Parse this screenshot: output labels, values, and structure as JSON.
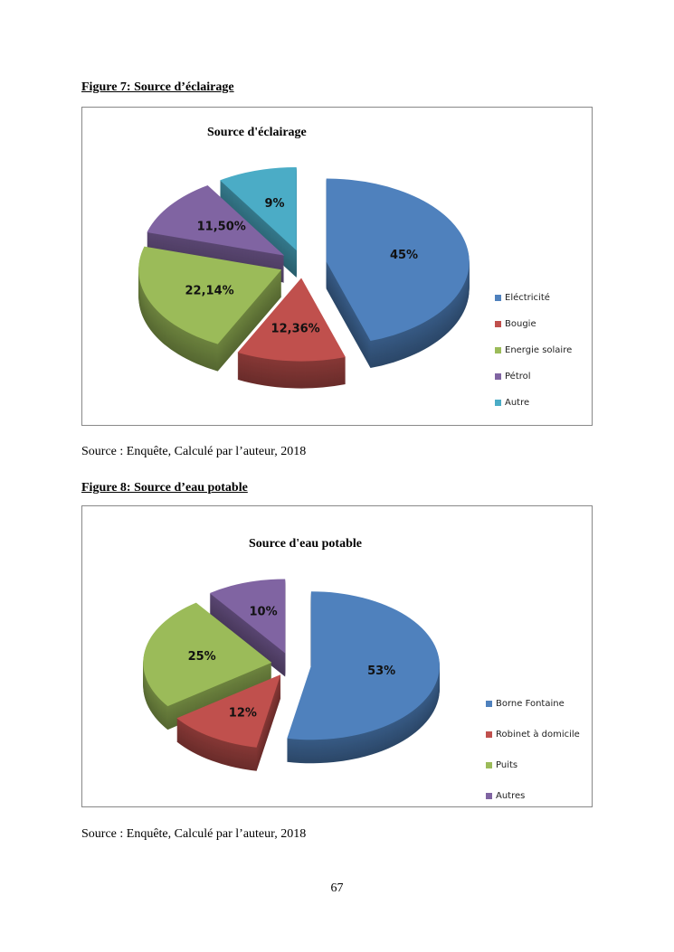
{
  "figures": [
    {
      "caption": "Figure 7: Source d’éclairage",
      "source": "Source : Enquête, Calculé par l’auteur, 2018"
    },
    {
      "caption": "Figure 8: Source d’eau potable",
      "source": "Source : Enquête, Calculé par l’auteur, 2018"
    }
  ],
  "page_number": "67",
  "chart_data": [
    {
      "type": "pie",
      "title": "Source d'éclairage",
      "legend_position": "right",
      "categories": [
        "Eléctricité",
        "Bougie",
        "Energie solaire",
        "Pétrol",
        "Autre"
      ],
      "values": [
        45,
        12.36,
        22.14,
        11.5,
        9
      ],
      "labels": [
        "45%",
        "12,36%",
        "22,14%",
        "11,50%",
        "9%"
      ],
      "colors": [
        "#4f81bd",
        "#c0504d",
        "#9bbb59",
        "#8064a2",
        "#4bacc6"
      ]
    },
    {
      "type": "pie",
      "title": "Source d'eau potable",
      "legend_position": "right",
      "categories": [
        "Borne Fontaine",
        "Robinet à domicile",
        "Puits",
        "Autres"
      ],
      "values": [
        53,
        12,
        25,
        10
      ],
      "labels": [
        "53%",
        "12%",
        "25%",
        "10%"
      ],
      "colors": [
        "#4f81bd",
        "#c0504d",
        "#9bbb59",
        "#8064a2"
      ]
    }
  ]
}
